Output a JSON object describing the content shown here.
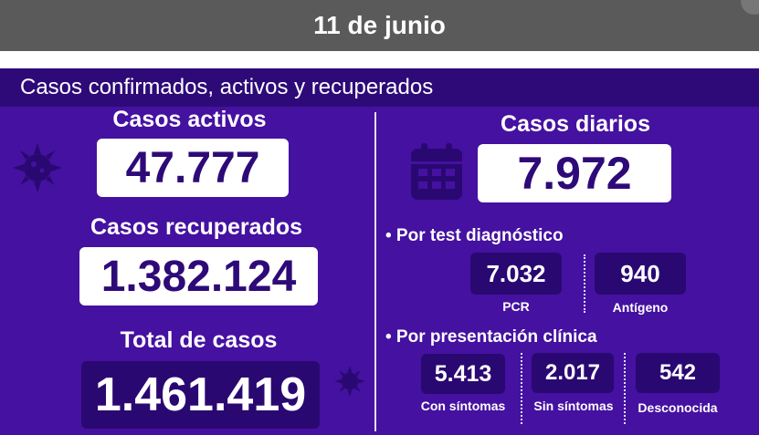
{
  "date": "11 de junio",
  "section_title": "Casos confirmados, activos y recuperados",
  "activos": {
    "label": "Casos activos",
    "value": "47.777"
  },
  "recuperados": {
    "label": "Casos recuperados",
    "value": "1.382.124"
  },
  "total": {
    "label": "Total de casos",
    "value": "1.461.419"
  },
  "diarios": {
    "label": "Casos diarios",
    "value": "7.972"
  },
  "test": {
    "label": "• Por test diagnóstico",
    "pcr": {
      "value": "7.032",
      "label": "PCR"
    },
    "antigeno": {
      "value": "940",
      "label": "Antígeno"
    }
  },
  "clinica": {
    "label": "• Por presentación clínica",
    "con_sintomas": {
      "value": "5.413",
      "label": "Con síntomas"
    },
    "sin_sintomas": {
      "value": "2.017",
      "label": "Sin síntomas"
    },
    "desconocida": {
      "value": "542",
      "label": "Desconocida"
    }
  },
  "icons": {
    "virus": "virus-icon",
    "calendar": "calendar-icon"
  },
  "colors": {
    "panel": "#4511a0",
    "header": "#2e0a78",
    "dark_box": "#2a0872",
    "date_bar": "#5a5a5a"
  }
}
